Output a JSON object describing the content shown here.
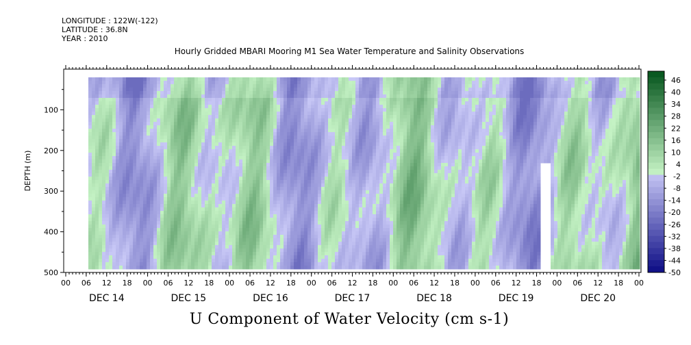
{
  "header": {
    "longitude": "LONGITUDE : 122W(-122)",
    "latitude": "LATITUDE : 36.8N",
    "year": "YEAR : 2010"
  },
  "chart_data": {
    "type": "heatmap",
    "title": "Hourly Gridded MBARI Mooring M1 Sea Water Temperature and Salinity Observations",
    "bottom_title": "U Component of Water Velocity (cm s-1)",
    "ylabel": "DEPTH (m)",
    "ylim": [
      500,
      0
    ],
    "y_ticks": [
      100,
      200,
      300,
      400,
      500
    ],
    "y_reversed": true,
    "x_hour_ticks": [
      "00",
      "06",
      "12",
      "18",
      "00",
      "06",
      "12",
      "18",
      "00",
      "06",
      "12",
      "18",
      "00",
      "06",
      "12",
      "18",
      "00",
      "06",
      "12",
      "18",
      "00",
      "06",
      "12",
      "18",
      "00",
      "06",
      "12",
      "18",
      "00"
    ],
    "x_days": [
      "DEC 14",
      "DEC 15",
      "DEC 16",
      "DEC 17",
      "DEC 18",
      "DEC 19",
      "DEC 20"
    ],
    "colorbar": {
      "labels": [
        46,
        40,
        34,
        28,
        22,
        16,
        10,
        4,
        -2,
        -8,
        -14,
        -20,
        -26,
        -32,
        -38,
        -44,
        -50
      ],
      "min": -50,
      "max": 50,
      "step": 3
    }
  }
}
